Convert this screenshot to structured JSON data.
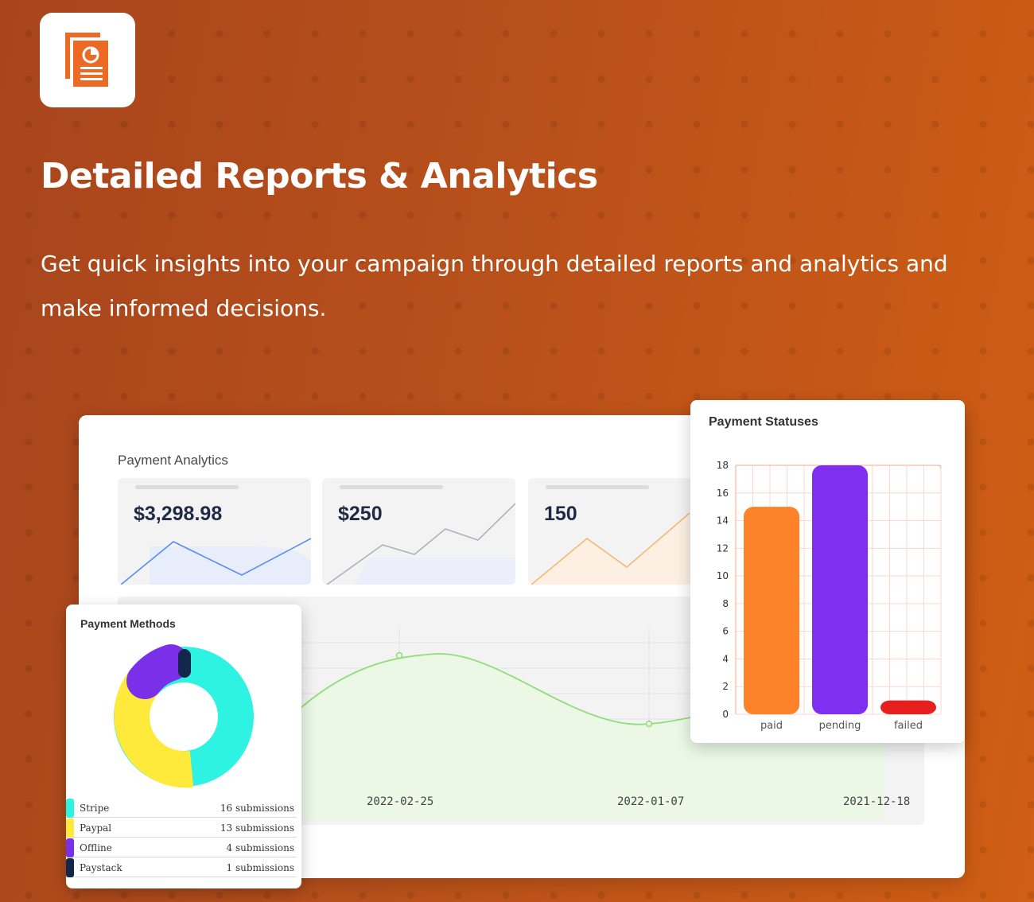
{
  "hero": {
    "logo_icon": "report-chart-icon",
    "title": "Detailed Reports & Analytics",
    "description": "Get quick insights into your campaign through detailed reports and analytics and make informed decisions."
  },
  "analytics": {
    "title": "Payment Analytics",
    "stats": [
      {
        "value": "$3,298.98",
        "color": "#5b8def"
      },
      {
        "value": "$250",
        "color": "#a9a9a9"
      },
      {
        "value": "150",
        "color": "#f3b875"
      }
    ],
    "trend_dates": [
      "2022-02-25",
      "2022-01-07",
      "2021-12-18"
    ]
  },
  "methods": {
    "title": "Payment Methods",
    "items": [
      {
        "name": "Stripe",
        "count": "16 submissions",
        "color": "#2ef3e3"
      },
      {
        "name": "Paypal",
        "count": "13 submissions",
        "color": "#ffe93a"
      },
      {
        "name": "Offline",
        "count": "4 submissions",
        "color": "#7a2fe9"
      },
      {
        "name": "Paystack",
        "count": "1 submissions",
        "color": "#14264a"
      }
    ]
  },
  "statuses": {
    "title": "Payment Statuses"
  },
  "chart_data": {
    "type": "bar",
    "title": "Payment Statuses",
    "categories": [
      "paid",
      "pending",
      "failed"
    ],
    "values": [
      15,
      18,
      1
    ],
    "colors": [
      "#fd822a",
      "#7f2ff0",
      "#e81f1f"
    ],
    "y_ticks": [
      "0",
      "2",
      "4",
      "6",
      "8",
      "10",
      "12",
      "14",
      "16",
      "18"
    ],
    "ylim": [
      0,
      18
    ],
    "grid": true
  }
}
